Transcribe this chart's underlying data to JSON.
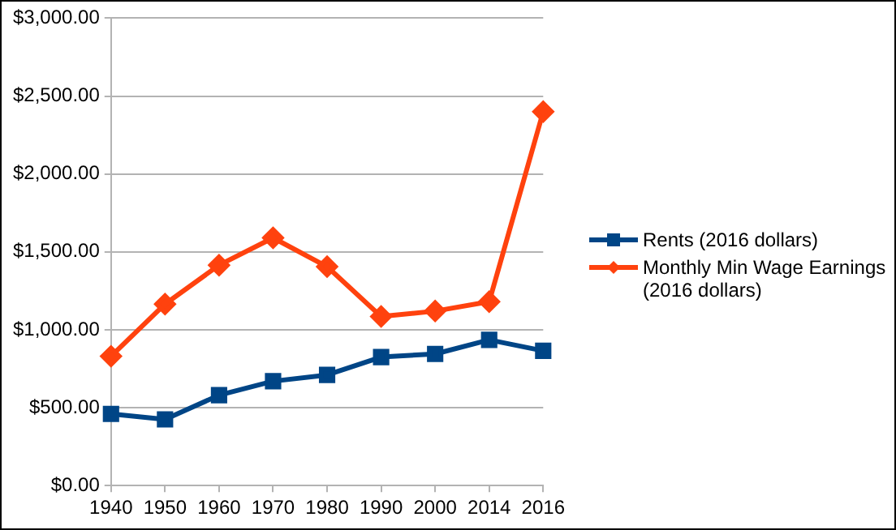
{
  "chart_data": {
    "type": "line",
    "categories": [
      "1940",
      "1950",
      "1960",
      "1970",
      "1980",
      "1990",
      "2000",
      "2014",
      "2016"
    ],
    "series": [
      {
        "name": "Rents (2016 dollars)",
        "color": "#004586",
        "marker": "square",
        "values": [
          460,
          425,
          580,
          670,
          710,
          825,
          845,
          935,
          865
        ]
      },
      {
        "name": "Monthly Min Wage Earnings (2016 dollars)",
        "color": "#ff420e",
        "marker": "diamond",
        "values": [
          830,
          1165,
          1415,
          1590,
          1405,
          1085,
          1120,
          1180,
          2400
        ]
      }
    ],
    "ylim": [
      0,
      3000
    ],
    "yticks": [
      {
        "value": 0,
        "label": "$0.00"
      },
      {
        "value": 500,
        "label": "$500.00"
      },
      {
        "value": 1000,
        "label": "$1,000.00"
      },
      {
        "value": 1500,
        "label": "$1,500.00"
      },
      {
        "value": 2000,
        "label": "$2,000.00"
      },
      {
        "value": 2500,
        "label": "$2,500.00"
      },
      {
        "value": 3000,
        "label": "$3,000.00"
      }
    ],
    "grid": "y",
    "legend": "right"
  }
}
